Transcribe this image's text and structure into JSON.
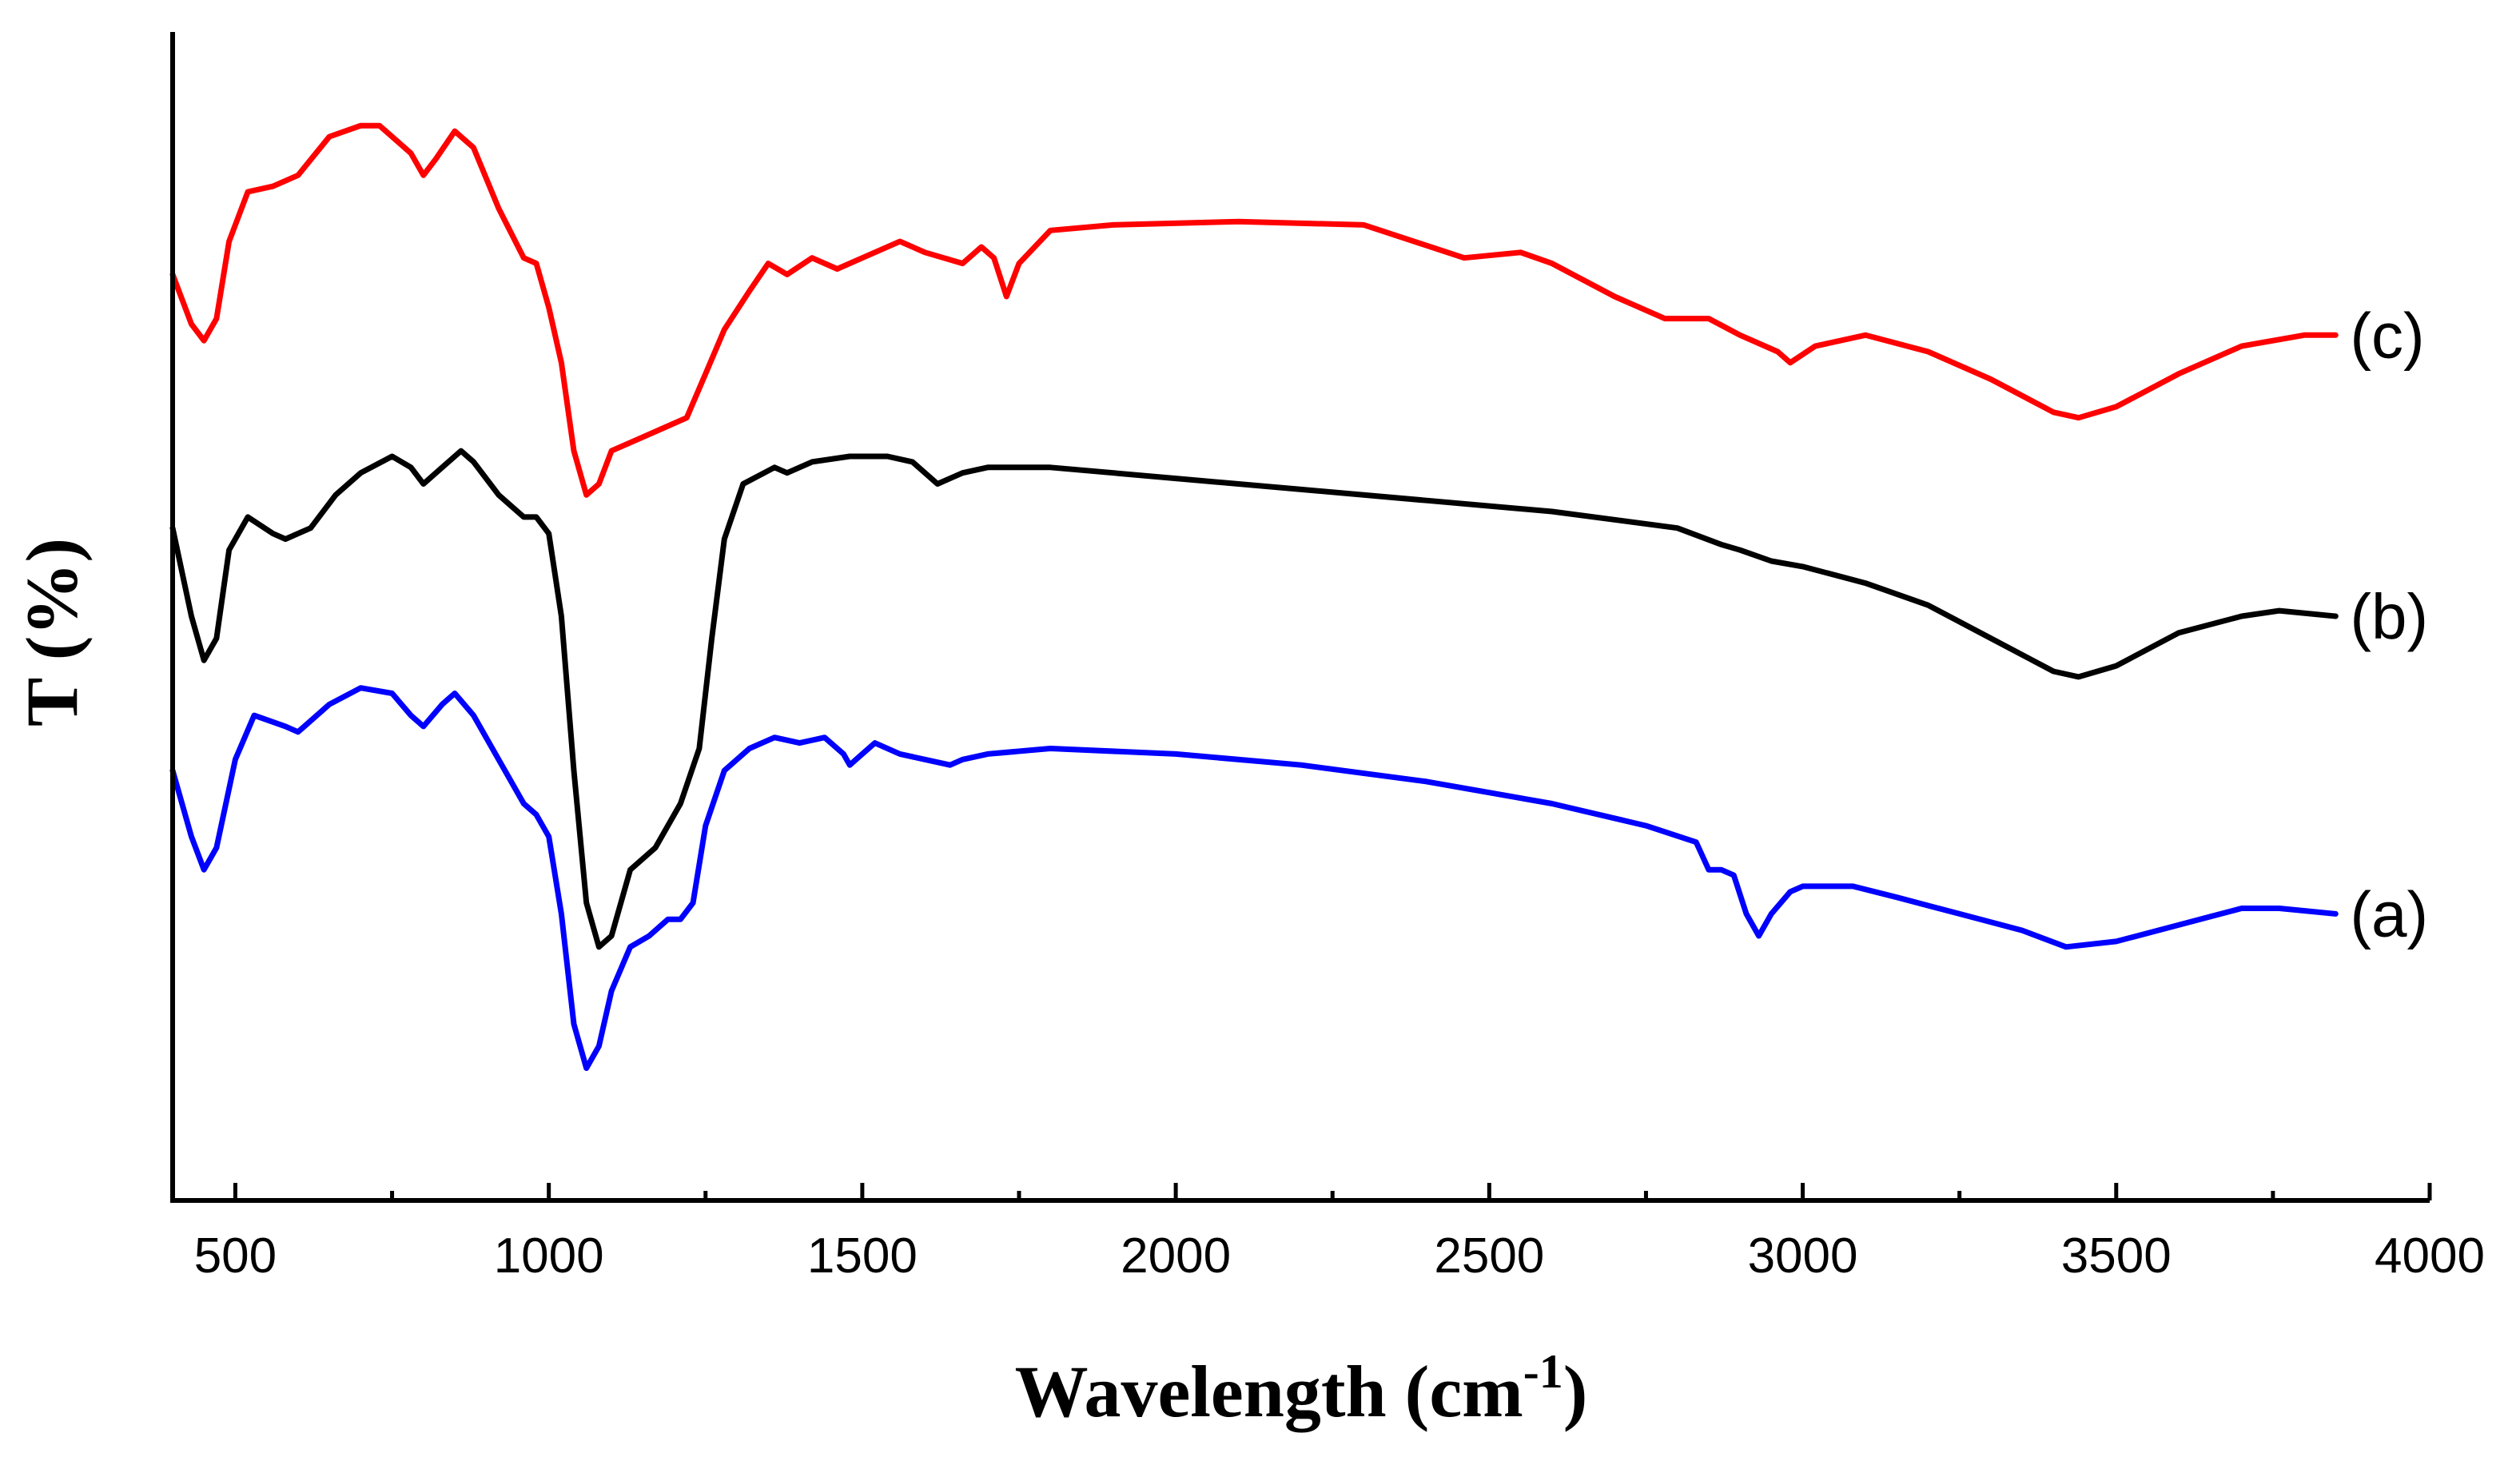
{
  "chart_data": {
    "type": "line",
    "title": "",
    "xlabel": "Wavelength (cm",
    "xlabel_sup": "-1",
    "xlabel_end": ")",
    "ylabel": "T (%)",
    "xlim": [
      400,
      4000
    ],
    "ylim": [
      -0.06,
      1.0
    ],
    "x_ticks": [
      500,
      1000,
      1500,
      2000,
      2500,
      3000,
      3500,
      4000
    ],
    "x_tick_labels": [
      "500",
      "1000",
      "1500",
      "2000",
      "2500",
      "3000",
      "3500",
      "4000"
    ],
    "y_ticks_shown": false,
    "grid": false,
    "series": [
      {
        "name": "(a)",
        "color": "#0000ff",
        "points": [
          [
            400,
            0.33
          ],
          [
            430,
            0.27
          ],
          [
            450,
            0.24
          ],
          [
            470,
            0.26
          ],
          [
            500,
            0.34
          ],
          [
            530,
            0.38
          ],
          [
            580,
            0.37
          ],
          [
            600,
            0.365
          ],
          [
            650,
            0.39
          ],
          [
            700,
            0.405
          ],
          [
            750,
            0.4
          ],
          [
            780,
            0.38
          ],
          [
            800,
            0.37
          ],
          [
            830,
            0.39
          ],
          [
            850,
            0.4
          ],
          [
            880,
            0.38
          ],
          [
            920,
            0.34
          ],
          [
            960,
            0.3
          ],
          [
            980,
            0.29
          ],
          [
            1000,
            0.27
          ],
          [
            1020,
            0.2
          ],
          [
            1040,
            0.1
          ],
          [
            1060,
            0.06
          ],
          [
            1080,
            0.08
          ],
          [
            1100,
            0.13
          ],
          [
            1130,
            0.17
          ],
          [
            1160,
            0.18
          ],
          [
            1190,
            0.195
          ],
          [
            1210,
            0.195
          ],
          [
            1230,
            0.21
          ],
          [
            1250,
            0.28
          ],
          [
            1280,
            0.33
          ],
          [
            1320,
            0.35
          ],
          [
            1360,
            0.36
          ],
          [
            1400,
            0.355
          ],
          [
            1440,
            0.36
          ],
          [
            1470,
            0.345
          ],
          [
            1480,
            0.335
          ],
          [
            1500,
            0.345
          ],
          [
            1520,
            0.355
          ],
          [
            1560,
            0.345
          ],
          [
            1600,
            0.34
          ],
          [
            1640,
            0.335
          ],
          [
            1660,
            0.34
          ],
          [
            1700,
            0.345
          ],
          [
            1800,
            0.35
          ],
          [
            2000,
            0.345
          ],
          [
            2200,
            0.335
          ],
          [
            2400,
            0.32
          ],
          [
            2600,
            0.3
          ],
          [
            2750,
            0.28
          ],
          [
            2830,
            0.265
          ],
          [
            2850,
            0.24
          ],
          [
            2870,
            0.24
          ],
          [
            2890,
            0.235
          ],
          [
            2910,
            0.2
          ],
          [
            2930,
            0.18
          ],
          [
            2950,
            0.2
          ],
          [
            2980,
            0.22
          ],
          [
            3000,
            0.225
          ],
          [
            3080,
            0.225
          ],
          [
            3150,
            0.215
          ],
          [
            3250,
            0.2
          ],
          [
            3350,
            0.185
          ],
          [
            3420,
            0.17
          ],
          [
            3500,
            0.175
          ],
          [
            3600,
            0.19
          ],
          [
            3700,
            0.205
          ],
          [
            3760,
            0.205
          ],
          [
            3850,
            0.2
          ]
        ]
      },
      {
        "name": "(b)",
        "color": "#000000",
        "points": [
          [
            400,
            0.55
          ],
          [
            430,
            0.47
          ],
          [
            450,
            0.43
          ],
          [
            470,
            0.45
          ],
          [
            490,
            0.53
          ],
          [
            520,
            0.56
          ],
          [
            560,
            0.545
          ],
          [
            580,
            0.54
          ],
          [
            620,
            0.55
          ],
          [
            660,
            0.58
          ],
          [
            700,
            0.6
          ],
          [
            750,
            0.615
          ],
          [
            780,
            0.605
          ],
          [
            800,
            0.59
          ],
          [
            830,
            0.605
          ],
          [
            860,
            0.62
          ],
          [
            880,
            0.61
          ],
          [
            920,
            0.58
          ],
          [
            960,
            0.56
          ],
          [
            980,
            0.56
          ],
          [
            1000,
            0.545
          ],
          [
            1020,
            0.47
          ],
          [
            1040,
            0.33
          ],
          [
            1060,
            0.21
          ],
          [
            1080,
            0.17
          ],
          [
            1100,
            0.18
          ],
          [
            1130,
            0.24
          ],
          [
            1170,
            0.26
          ],
          [
            1210,
            0.3
          ],
          [
            1240,
            0.35
          ],
          [
            1260,
            0.45
          ],
          [
            1280,
            0.54
          ],
          [
            1310,
            0.59
          ],
          [
            1360,
            0.605
          ],
          [
            1380,
            0.6
          ],
          [
            1420,
            0.61
          ],
          [
            1480,
            0.615
          ],
          [
            1540,
            0.615
          ],
          [
            1580,
            0.61
          ],
          [
            1620,
            0.59
          ],
          [
            1640,
            0.595
          ],
          [
            1660,
            0.6
          ],
          [
            1700,
            0.605
          ],
          [
            1800,
            0.605
          ],
          [
            2000,
            0.595
          ],
          [
            2200,
            0.585
          ],
          [
            2400,
            0.575
          ],
          [
            2600,
            0.565
          ],
          [
            2800,
            0.55
          ],
          [
            2870,
            0.535
          ],
          [
            2900,
            0.53
          ],
          [
            2950,
            0.52
          ],
          [
            3000,
            0.515
          ],
          [
            3100,
            0.5
          ],
          [
            3200,
            0.48
          ],
          [
            3300,
            0.45
          ],
          [
            3400,
            0.42
          ],
          [
            3440,
            0.415
          ],
          [
            3500,
            0.425
          ],
          [
            3600,
            0.455
          ],
          [
            3700,
            0.47
          ],
          [
            3760,
            0.475
          ],
          [
            3850,
            0.47
          ]
        ]
      },
      {
        "name": "(c)",
        "color": "#ff0000",
        "points": [
          [
            400,
            0.78
          ],
          [
            430,
            0.735
          ],
          [
            450,
            0.72
          ],
          [
            470,
            0.74
          ],
          [
            490,
            0.81
          ],
          [
            520,
            0.855
          ],
          [
            560,
            0.86
          ],
          [
            600,
            0.87
          ],
          [
            650,
            0.905
          ],
          [
            700,
            0.915
          ],
          [
            730,
            0.915
          ],
          [
            760,
            0.9
          ],
          [
            780,
            0.89
          ],
          [
            800,
            0.87
          ],
          [
            820,
            0.885
          ],
          [
            850,
            0.91
          ],
          [
            880,
            0.895
          ],
          [
            920,
            0.84
          ],
          [
            960,
            0.795
          ],
          [
            980,
            0.79
          ],
          [
            1000,
            0.75
          ],
          [
            1020,
            0.7
          ],
          [
            1040,
            0.62
          ],
          [
            1060,
            0.58
          ],
          [
            1080,
            0.59
          ],
          [
            1100,
            0.62
          ],
          [
            1140,
            0.63
          ],
          [
            1180,
            0.64
          ],
          [
            1220,
            0.65
          ],
          [
            1250,
            0.69
          ],
          [
            1280,
            0.73
          ],
          [
            1320,
            0.765
          ],
          [
            1350,
            0.79
          ],
          [
            1380,
            0.78
          ],
          [
            1420,
            0.795
          ],
          [
            1460,
            0.785
          ],
          [
            1500,
            0.795
          ],
          [
            1560,
            0.81
          ],
          [
            1600,
            0.8
          ],
          [
            1660,
            0.79
          ],
          [
            1690,
            0.805
          ],
          [
            1710,
            0.795
          ],
          [
            1730,
            0.76
          ],
          [
            1750,
            0.79
          ],
          [
            1800,
            0.82
          ],
          [
            1900,
            0.825
          ],
          [
            2100,
            0.828
          ],
          [
            2300,
            0.825
          ],
          [
            2380,
            0.81
          ],
          [
            2460,
            0.795
          ],
          [
            2550,
            0.8
          ],
          [
            2600,
            0.79
          ],
          [
            2700,
            0.76
          ],
          [
            2780,
            0.74
          ],
          [
            2850,
            0.74
          ],
          [
            2900,
            0.725
          ],
          [
            2960,
            0.71
          ],
          [
            2980,
            0.7
          ],
          [
            3020,
            0.715
          ],
          [
            3100,
            0.725
          ],
          [
            3200,
            0.71
          ],
          [
            3300,
            0.685
          ],
          [
            3400,
            0.655
          ],
          [
            3440,
            0.65
          ],
          [
            3500,
            0.66
          ],
          [
            3600,
            0.69
          ],
          [
            3700,
            0.715
          ],
          [
            3800,
            0.725
          ],
          [
            3850,
            0.725
          ]
        ]
      }
    ]
  }
}
